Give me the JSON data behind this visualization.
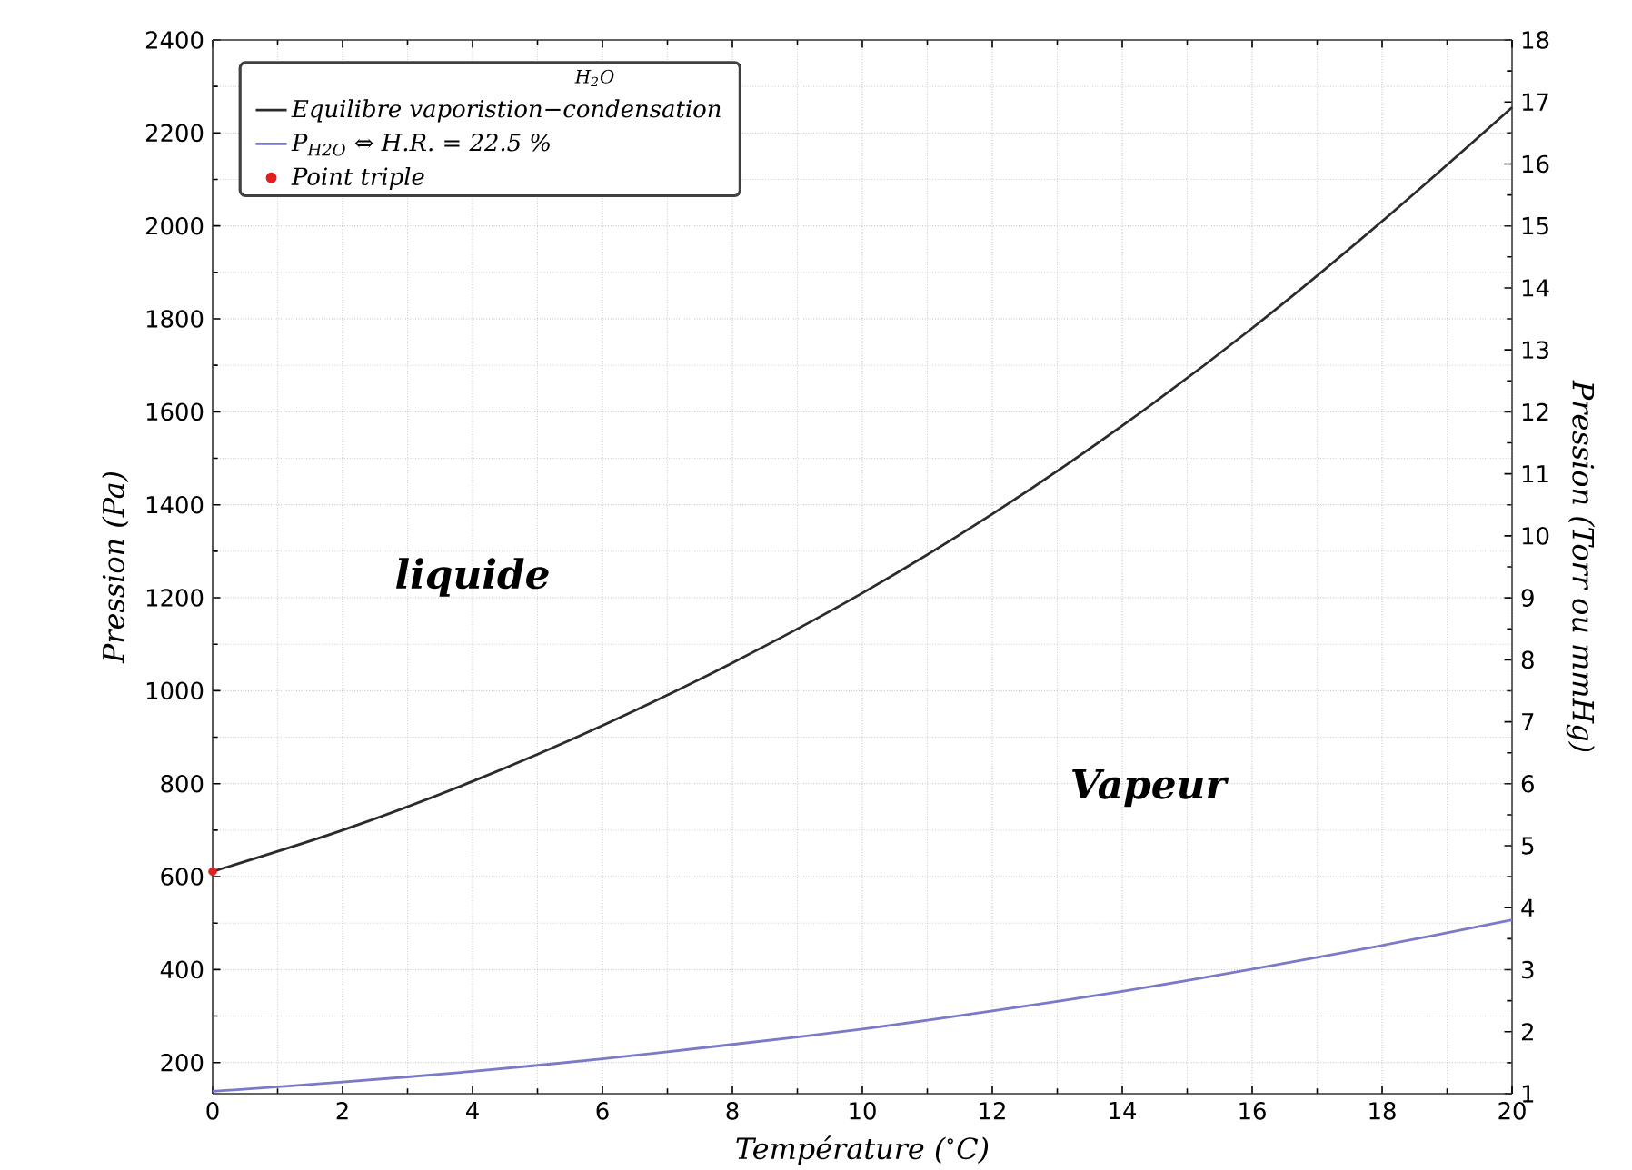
{
  "chart_data": {
    "type": "line",
    "xlabel": "Température ($^{∘}$C)",
    "ylabel": "Pression (Pa)",
    "y2label": "Pression (Torr ou mmHg)",
    "legend_title": "H$_{2}$O",
    "x": [
      0,
      2,
      4,
      6,
      8,
      10,
      12,
      14,
      16,
      18,
      20
    ],
    "series": [
      {
        "name": "Equilibre vaporistion−condensation",
        "color": "#2b2b2b",
        "values": [
          611,
          700,
          805,
          925,
          1060,
          1210,
          1380,
          1570,
          1780,
          2010,
          2255
        ]
      },
      {
        "name": "P$_{H2O}$ ⇔ H.R. = 22.5 %",
        "color": "#7a7ac8",
        "values": [
          138,
          158,
          181,
          208,
          239,
          272,
          311,
          353,
          401,
          452,
          507
        ]
      },
      {
        "name": "Point triple",
        "type": "scatter",
        "color": "#e02020",
        "x": [
          0
        ],
        "values": [
          611
        ]
      }
    ],
    "xlim": [
      0,
      20
    ],
    "xticks": [
      0,
      2,
      4,
      6,
      8,
      10,
      12,
      14,
      16,
      18,
      20
    ],
    "ylim": [
      133,
      2400
    ],
    "yticks": [
      200,
      400,
      600,
      800,
      1000,
      1200,
      1400,
      1600,
      1800,
      2000,
      2200,
      2400
    ],
    "y2lim": [
      1,
      18
    ],
    "y2ticks": [
      1,
      2,
      3,
      4,
      5,
      6,
      7,
      8,
      9,
      10,
      11,
      12,
      13,
      14,
      15,
      16,
      17,
      18
    ],
    "annotations": [
      "liquide",
      "Vapeur"
    ],
    "grid": true,
    "legend": "top left"
  }
}
